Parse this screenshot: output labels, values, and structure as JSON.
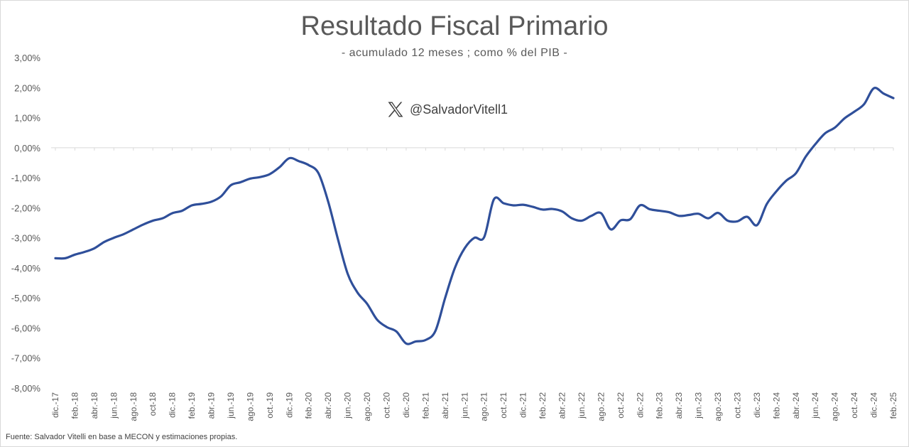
{
  "title": "Resultado Fiscal Primario",
  "subtitle": "- acumulado 12 meses ; como % del PIB -",
  "handle": "@SalvadorVitell1",
  "source": "Fuente: Salvador Vitelli en base a MECON y estimaciones propias.",
  "chart_data": {
    "type": "line",
    "title": "Resultado Fiscal Primario",
    "subtitle": "- acumulado 12 meses ; como % del PIB -",
    "ylim": [
      -8,
      3
    ],
    "y_ticks": [
      "3,00%",
      "2,00%",
      "1,00%",
      "0,00%",
      "-1,00%",
      "-2,00%",
      "-3,00%",
      "-4,00%",
      "-5,00%",
      "-6,00%",
      "-7,00%",
      "-8,00%"
    ],
    "x_ticks": [
      "dic.-17",
      "feb.-18",
      "abr.-18",
      "jun.-18",
      "ago.-18",
      "oct-18",
      "dic.-18",
      "feb.-19",
      "abr.-19",
      "jun.-19",
      "ago.-19",
      "oct.-19",
      "dic.-19",
      "feb.-20",
      "abr.-20",
      "jun.-20",
      "ago.-20",
      "oct.-20",
      "dic.-20",
      "feb.-21",
      "abr.-21",
      "jun.-21",
      "ago.-21",
      "oct.-21",
      "dic.-21",
      "feb.-22",
      "abr.-22",
      "jun.-22",
      "ago.-22",
      "oct.-22",
      "dic.-22",
      "feb.-23",
      "abr.-23",
      "jun.-23",
      "ago.-23",
      "oct.-23",
      "dic.-23",
      "feb.-24",
      "abr.-24",
      "jun.-24",
      "ago.-24",
      "oct.-24",
      "dic.-24",
      "feb.-25"
    ],
    "grid": "horizontal-zero-line",
    "series": [
      {
        "color": "#2f4f9a",
        "values": [
          -3.68,
          -3.68,
          -3.56,
          -3.47,
          -3.35,
          -3.14,
          -3.0,
          -2.88,
          -2.72,
          -2.56,
          -2.43,
          -2.35,
          -2.18,
          -2.1,
          -1.92,
          -1.87,
          -1.8,
          -1.62,
          -1.25,
          -1.15,
          -1.03,
          -0.98,
          -0.88,
          -0.65,
          -0.35,
          -0.45,
          -0.58,
          -0.85,
          -1.8,
          -3.05,
          -4.2,
          -4.82,
          -5.2,
          -5.72,
          -5.97,
          -6.12,
          -6.52,
          -6.45,
          -6.4,
          -6.1,
          -5.0,
          -4.0,
          -3.35,
          -3.0,
          -2.98,
          -1.72,
          -1.85,
          -1.92,
          -1.9,
          -1.97,
          -2.06,
          -2.04,
          -2.12,
          -2.35,
          -2.43,
          -2.27,
          -2.18,
          -2.72,
          -2.42,
          -2.38,
          -1.92,
          -2.05,
          -2.1,
          -2.15,
          -2.27,
          -2.24,
          -2.2,
          -2.35,
          -2.17,
          -2.43,
          -2.45,
          -2.3,
          -2.58,
          -1.88,
          -1.45,
          -1.1,
          -0.85,
          -0.3,
          0.12,
          0.48,
          0.67,
          0.98,
          1.2,
          1.45,
          1.98,
          1.8,
          1.65
        ]
      }
    ]
  }
}
